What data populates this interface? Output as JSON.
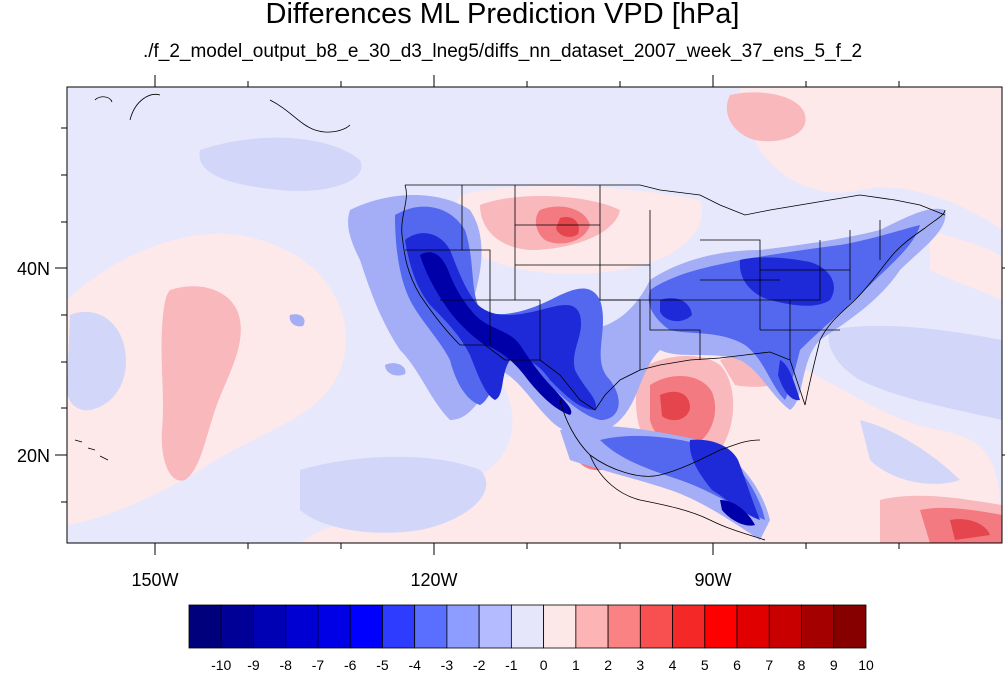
{
  "title": "Differences ML Prediction VPD [hPa]",
  "subtitle": "./f_2_model_output_b8_e_30_d3_lneg5/diffs_nn_dataset_2007_week_37_ens_5_f_2",
  "map": {
    "lon_ticks": [
      "150W",
      "120W",
      "90W"
    ],
    "lat_ticks": [
      "40N",
      "20N"
    ],
    "field_colors": {
      "neg_strong": "#0000c8",
      "neg_mid": "#3c5af0",
      "neg_light": "#8c9cf4",
      "neg_faint": "#c8ccf6",
      "neutral_neg": "#e8e8fc",
      "neutral_pos": "#fde9ea",
      "pos_light": "#f8b4b8",
      "pos_mid": "#f2777c",
      "pos_strong": "#e0343a"
    }
  },
  "colorbar": {
    "labels": [
      "-10",
      "-9",
      "-8",
      "-7",
      "-6",
      "-5",
      "-4",
      "-3",
      "-2",
      "-1",
      "0",
      "1",
      "2",
      "3",
      "4",
      "5",
      "6",
      "7",
      "8",
      "9",
      "10"
    ],
    "colors": [
      "#00007d",
      "#000096",
      "#0000b4",
      "#0000d2",
      "#0000e6",
      "#0000ff",
      "#2d3cff",
      "#5a6eff",
      "#8c9cff",
      "#b4bcff",
      "#e6e6fa",
      "#fde8e8",
      "#fcb4b4",
      "#fa8282",
      "#f85050",
      "#f52828",
      "#ff0000",
      "#e10000",
      "#c80000",
      "#a50000",
      "#870000"
    ]
  }
}
